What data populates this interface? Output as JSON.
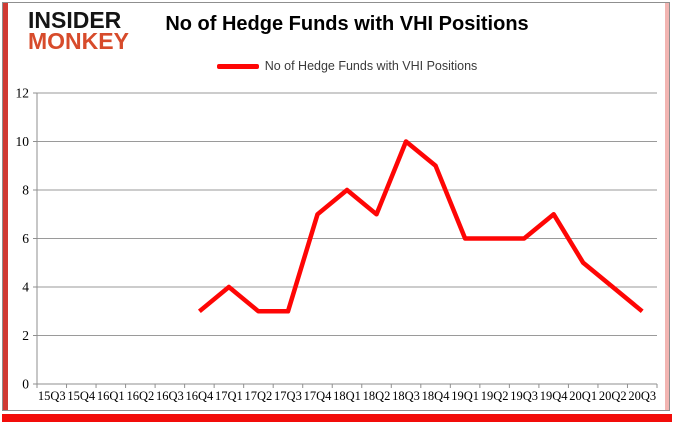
{
  "logo": {
    "top": "INSIDER",
    "bottom": "MONKEY"
  },
  "title": "No of Hedge Funds with VHI Positions",
  "legend": {
    "label": "No of Hedge Funds with VHI Positions"
  },
  "colors": {
    "line": "#fe0605",
    "grid": "#9a9a9a",
    "axis": "#8f8f8f",
    "logo_red": "#d74b2b",
    "left_stripe": "#d03a33",
    "right_stripe": "#f2b5b2",
    "bottom_bar": "#f20d0a"
  },
  "chart_data": {
    "type": "line",
    "title": "No of Hedge Funds with VHI Positions",
    "xlabel": "",
    "ylabel": "",
    "ylim": [
      0,
      12
    ],
    "ytick_step": 2,
    "grid": true,
    "legend_position": "top-center",
    "categories": [
      "15Q3",
      "15Q4",
      "16Q1",
      "16Q2",
      "16Q3",
      "16Q4",
      "17Q1",
      "17Q2",
      "17Q3",
      "17Q4",
      "18Q1",
      "18Q2",
      "18Q3",
      "18Q4",
      "19Q1",
      "19Q2",
      "19Q3",
      "19Q4",
      "20Q1",
      "20Q2",
      "20Q3"
    ],
    "series": [
      {
        "name": "No of Hedge Funds with VHI Positions",
        "values": [
          null,
          null,
          null,
          null,
          null,
          3,
          4,
          3,
          3,
          7,
          8,
          7,
          10,
          9,
          6,
          6,
          6,
          7,
          5,
          4,
          3
        ]
      }
    ]
  }
}
